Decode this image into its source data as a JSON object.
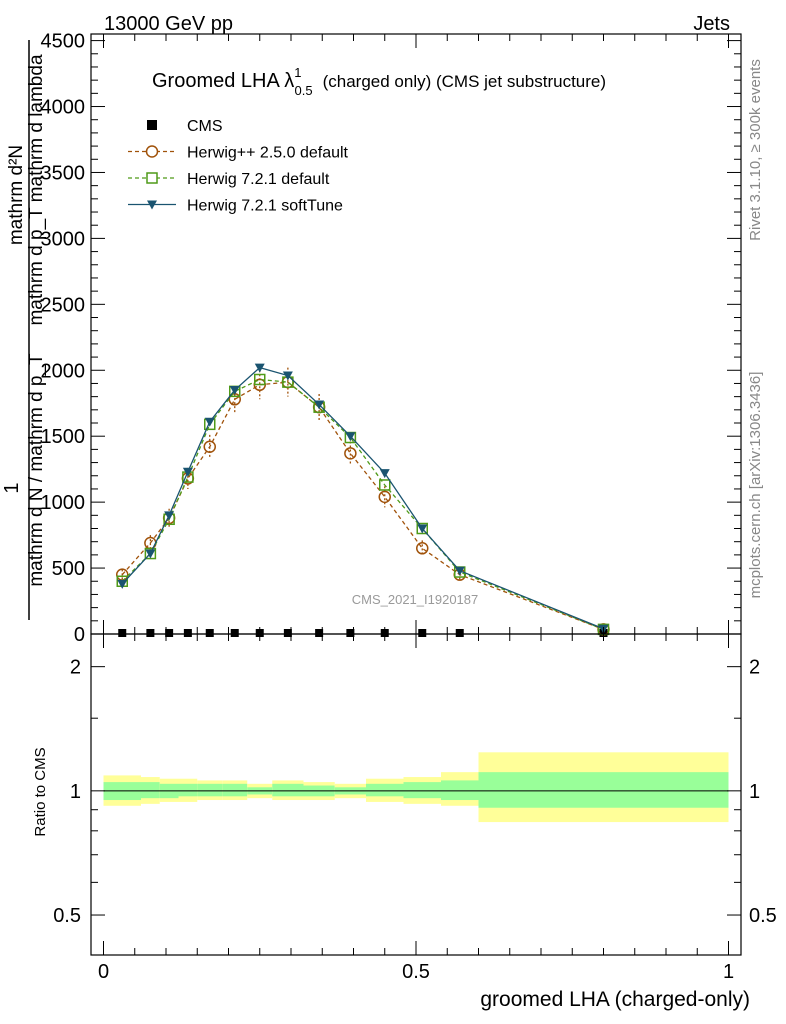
{
  "header": {
    "left": "13000 GeV pp",
    "right": "Jets"
  },
  "side": {
    "rivet": "Rivet 3.1.10, ≥ 300k events",
    "mcplots": "mcplots.cern.ch [arXiv:1306.3436]"
  },
  "chart_data": {
    "type": "scatter",
    "title": "Groomed LHA λ",
    "title_sup": "1",
    "title_sub": "0.5",
    "title_rest": "(charged only) (CMS jet substructure)",
    "watermark": "CMS_2021_I1920187",
    "xlabel": "groomed LHA (charged-only)",
    "ylabel_parts": [
      "mathrm d²N",
      "1",
      "mathrm d N / mathrm d p_T",
      "mathrm d p_T mathrm d lambda"
    ],
    "ylim": [
      0,
      4550
    ],
    "xlim": [
      -0.02,
      1.02
    ],
    "yticks": [
      0,
      500,
      1000,
      1500,
      2000,
      2500,
      3000,
      3500,
      4000,
      4500
    ],
    "yticklabels": [
      "0",
      "500",
      "1000",
      "1500",
      "2000",
      "2500",
      "3000",
      "3500",
      "4000",
      "4500"
    ],
    "xticks": [
      0,
      0.5,
      1
    ],
    "xticklabels": [
      "0",
      "0.5",
      "1"
    ],
    "x": [
      0.03,
      0.075,
      0.105,
      0.135,
      0.17,
      0.21,
      0.25,
      0.295,
      0.345,
      0.395,
      0.45,
      0.51,
      0.57,
      0.8
    ],
    "series": [
      {
        "name": "CMS",
        "color": "#000000",
        "marker": "square",
        "values": [
          0,
          0,
          0,
          0,
          0,
          0,
          0,
          0,
          0,
          0,
          0,
          0,
          0,
          0
        ]
      },
      {
        "name": "Herwig++ 2.5.0 default",
        "color": "#a0520a",
        "marker": "circle",
        "dashed": true,
        "values": [
          450,
          690,
          880,
          1180,
          1420,
          1780,
          1890,
          1910,
          1720,
          1370,
          1040,
          650,
          450,
          35
        ],
        "errors": [
          40,
          60,
          70,
          80,
          90,
          100,
          110,
          110,
          100,
          90,
          80,
          60,
          40,
          15
        ]
      },
      {
        "name": "Herwig 7.2.1 default",
        "color": "#4f9a18",
        "marker": "open-square",
        "dashed": true,
        "values": [
          400,
          610,
          870,
          1190,
          1590,
          1840,
          1930,
          1910,
          1720,
          1490,
          1130,
          800,
          470,
          35
        ]
      },
      {
        "name": "Herwig 7.2.1 softTune",
        "color": "#1a5470",
        "marker": "triangle-down",
        "dashed": false,
        "values": [
          380,
          610,
          900,
          1230,
          1610,
          1850,
          2020,
          1960,
          1740,
          1500,
          1220,
          800,
          480,
          40
        ]
      }
    ],
    "ratio": {
      "ylabel": "Ratio to CMS",
      "ylim": [
        0.4,
        2.4
      ],
      "yticks": [
        0.5,
        1,
        2
      ],
      "yticklabels": [
        "0.5",
        "1",
        "2"
      ],
      "bins": [
        {
          "lo": 0.0,
          "hi": 0.06,
          "inner": [
            0.95,
            1.05
          ],
          "outer": [
            0.92,
            1.09
          ]
        },
        {
          "lo": 0.06,
          "hi": 0.09,
          "inner": [
            0.96,
            1.05
          ],
          "outer": [
            0.93,
            1.08
          ]
        },
        {
          "lo": 0.09,
          "hi": 0.12,
          "inner": [
            0.96,
            1.04
          ],
          "outer": [
            0.94,
            1.07
          ]
        },
        {
          "lo": 0.12,
          "hi": 0.15,
          "inner": [
            0.97,
            1.04
          ],
          "outer": [
            0.94,
            1.07
          ]
        },
        {
          "lo": 0.15,
          "hi": 0.19,
          "inner": [
            0.97,
            1.04
          ],
          "outer": [
            0.95,
            1.06
          ]
        },
        {
          "lo": 0.19,
          "hi": 0.23,
          "inner": [
            0.97,
            1.04
          ],
          "outer": [
            0.95,
            1.06
          ]
        },
        {
          "lo": 0.23,
          "hi": 0.27,
          "inner": [
            0.98,
            1.02
          ],
          "outer": [
            0.96,
            1.04
          ]
        },
        {
          "lo": 0.27,
          "hi": 0.32,
          "inner": [
            0.97,
            1.04
          ],
          "outer": [
            0.95,
            1.06
          ]
        },
        {
          "lo": 0.32,
          "hi": 0.37,
          "inner": [
            0.97,
            1.03
          ],
          "outer": [
            0.95,
            1.05
          ]
        },
        {
          "lo": 0.37,
          "hi": 0.42,
          "inner": [
            0.98,
            1.02
          ],
          "outer": [
            0.96,
            1.04
          ]
        },
        {
          "lo": 0.42,
          "hi": 0.48,
          "inner": [
            0.97,
            1.04
          ],
          "outer": [
            0.94,
            1.07
          ]
        },
        {
          "lo": 0.48,
          "hi": 0.54,
          "inner": [
            0.96,
            1.05
          ],
          "outer": [
            0.93,
            1.08
          ]
        },
        {
          "lo": 0.54,
          "hi": 0.6,
          "inner": [
            0.95,
            1.06
          ],
          "outer": [
            0.92,
            1.11
          ]
        },
        {
          "lo": 0.6,
          "hi": 1.0,
          "inner": [
            0.91,
            1.11
          ],
          "outer": [
            0.84,
            1.24
          ]
        }
      ],
      "inner_color": "#99ff99",
      "outer_color": "#ffff99"
    }
  }
}
